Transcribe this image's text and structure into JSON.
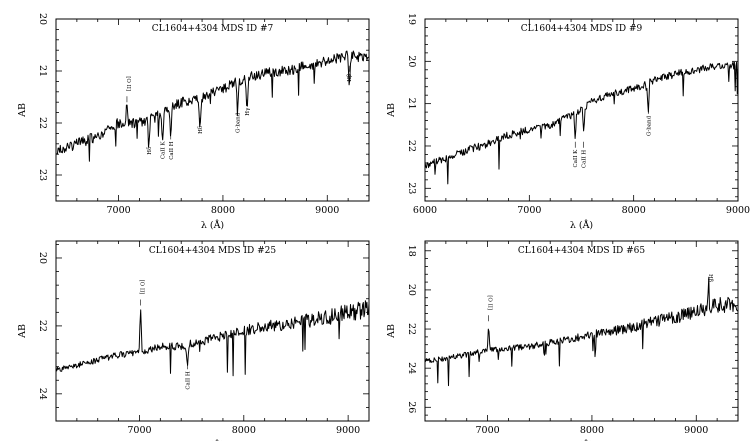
{
  "figure": {
    "xlabel": "λ (Å)",
    "ylabel": "AB"
  },
  "chart_data": [
    {
      "type": "line",
      "title": "CL1604+4304 MDS ID #7",
      "xlabel": "λ (Å)",
      "ylabel": "AB",
      "xlim": [
        6400,
        9400
      ],
      "ylim": [
        23.5,
        20.0
      ],
      "xticks": [
        7000,
        8000,
        9000
      ],
      "yticks": [
        20,
        21,
        22,
        23
      ],
      "series": [
        {
          "x": [
            6400,
            6600,
            6800,
            7000,
            7200,
            7400,
            7600,
            7800,
            8000,
            8200,
            8400,
            8600,
            8800,
            9000,
            9200,
            9400
          ],
          "y": [
            22.55,
            22.4,
            22.25,
            22.0,
            22.0,
            21.85,
            21.6,
            21.5,
            21.35,
            21.15,
            21.05,
            21.0,
            20.9,
            20.8,
            20.7,
            20.75
          ]
        }
      ],
      "annotations": [
        {
          "text": "[O II]",
          "x": 7080,
          "dir": "up",
          "y": 21.6
        },
        {
          "text": "Hδ",
          "x": 7290,
          "dir": "down",
          "y": 22.3
        },
        {
          "text": "CaII K",
          "x": 7420,
          "dir": "down",
          "y": 22.2
        },
        {
          "text": "CaII H",
          "x": 7500,
          "dir": "down",
          "y": 22.2
        },
        {
          "text": "Hδ",
          "x": 7780,
          "dir": "down",
          "y": 21.9
        },
        {
          "text": "G-band",
          "x": 8140,
          "dir": "down",
          "y": 21.65
        },
        {
          "text": "Hγ",
          "x": 8230,
          "dir": "down",
          "y": 21.55
        },
        {
          "text": "Hβ",
          "x": 9210,
          "dir": "down",
          "y": 20.9
        }
      ]
    },
    {
      "type": "line",
      "title": "CL1604+4304 MDS ID #9",
      "xlabel": "λ (Å)",
      "ylabel": "AB",
      "xlim": [
        6000,
        9000
      ],
      "ylim": [
        23.3,
        19.0
      ],
      "xticks": [
        6000,
        7000,
        8000,
        9000
      ],
      "yticks": [
        19,
        20,
        21,
        22,
        23
      ],
      "series": [
        {
          "x": [
            6000,
            6200,
            6400,
            6600,
            6800,
            7000,
            7200,
            7400,
            7600,
            7800,
            8000,
            8200,
            8400,
            8600,
            8800,
            9000
          ],
          "y": [
            22.45,
            22.3,
            22.1,
            21.95,
            21.75,
            21.6,
            21.5,
            21.3,
            20.95,
            20.75,
            20.65,
            20.45,
            20.3,
            20.2,
            20.1,
            20.1
          ]
        }
      ],
      "annotations": [
        {
          "text": "CaII K",
          "x": 7440,
          "dir": "down",
          "y": 21.9
        },
        {
          "text": "CaII H",
          "x": 7520,
          "dir": "down",
          "y": 21.9
        },
        {
          "text": "G-band",
          "x": 8140,
          "dir": "down",
          "y": 21.1
        }
      ]
    },
    {
      "type": "line",
      "title": "CL1604+4304 MDS ID #25",
      "xlabel": "λ (Å)",
      "ylabel": "AB",
      "xlim": [
        6200,
        9200
      ],
      "ylim": [
        24.8,
        19.5
      ],
      "xticks": [
        7000,
        8000,
        9000
      ],
      "yticks": [
        20,
        22,
        24
      ],
      "series": [
        {
          "x": [
            6200,
            6400,
            6600,
            6800,
            7000,
            7200,
            7400,
            7600,
            7800,
            8000,
            8200,
            8400,
            8600,
            8800,
            9000,
            9200
          ],
          "y": [
            23.3,
            23.15,
            23.0,
            22.85,
            22.8,
            22.6,
            22.6,
            22.45,
            22.3,
            22.15,
            22.0,
            21.95,
            21.85,
            21.75,
            21.6,
            21.5
          ]
        }
      ],
      "annotations": [
        {
          "text": "[O II]",
          "x": 7010,
          "dir": "up",
          "y": 21.4
        },
        {
          "text": "CaII H",
          "x": 7460,
          "dir": "down",
          "y": 23.1
        }
      ]
    },
    {
      "type": "line",
      "title": "CL1604+4304 MDS ID #65",
      "xlabel": "λ (Å)",
      "ylabel": "AB",
      "xlim": [
        6400,
        9400
      ],
      "ylim": [
        26.7,
        17.5
      ],
      "xticks": [
        7000,
        8000,
        9000
      ],
      "yticks": [
        18,
        20,
        22,
        24,
        26
      ],
      "series": [
        {
          "x": [
            6400,
            6600,
            6800,
            7000,
            7200,
            7400,
            7600,
            7800,
            8000,
            8200,
            8400,
            8600,
            8800,
            9000,
            9200,
            9400
          ],
          "y": [
            23.6,
            23.5,
            23.3,
            23.1,
            23.0,
            22.9,
            22.7,
            22.5,
            22.3,
            22.1,
            21.9,
            21.6,
            21.4,
            21.1,
            20.8,
            20.7
          ]
        }
      ],
      "annotations": [
        {
          "text": "[O II]",
          "x": 7010,
          "dir": "up",
          "y": 21.6
        },
        {
          "text": "Hβ",
          "x": 9120,
          "dir": "up",
          "y": 19.9
        }
      ]
    }
  ]
}
